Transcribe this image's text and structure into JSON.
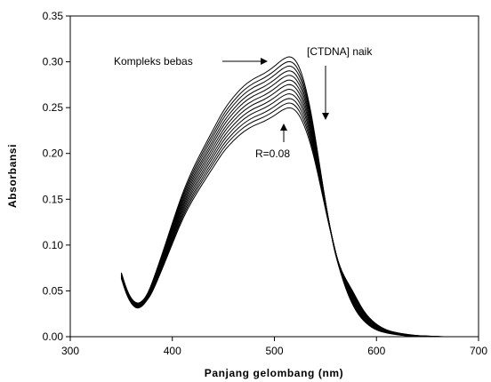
{
  "chart_data": {
    "type": "line",
    "xlabel": "Panjang gelombang (nm)",
    "ylabel": "Absorbansi",
    "xlim": [
      300,
      700
    ],
    "ylim": [
      0.0,
      0.35
    ],
    "x_ticks": [
      "300",
      "400",
      "500",
      "600",
      "700"
    ],
    "y_ticks": [
      "0.00",
      "0.05",
      "0.10",
      "0.15",
      "0.20",
      "0.25",
      "0.30",
      "0.35"
    ],
    "grid": false,
    "base_curve": {
      "x": [
        350,
        355,
        360,
        365,
        370,
        375,
        380,
        390,
        400,
        410,
        420,
        430,
        440,
        450,
        460,
        470,
        480,
        490,
        500,
        505,
        510,
        515,
        520,
        525,
        530,
        535,
        540,
        545,
        550,
        555,
        560,
        570,
        580,
        590,
        600,
        610,
        620,
        630,
        640,
        650
      ],
      "y": [
        0.07,
        0.052,
        0.041,
        0.036,
        0.038,
        0.045,
        0.058,
        0.09,
        0.124,
        0.157,
        0.183,
        0.205,
        0.226,
        0.247,
        0.262,
        0.274,
        0.282,
        0.287,
        0.295,
        0.3,
        0.304,
        0.306,
        0.303,
        0.293,
        0.275,
        0.25,
        0.218,
        0.182,
        0.147,
        0.115,
        0.088,
        0.051,
        0.027,
        0.014,
        0.007,
        0.004,
        0.002,
        0.001,
        0.0005,
        0.0
      ]
    },
    "series": [
      {
        "name": "Kompleks bebas",
        "scale": 1.0
      },
      {
        "scale": 0.983
      },
      {
        "scale": 0.967
      },
      {
        "scale": 0.95
      },
      {
        "scale": 0.934
      },
      {
        "scale": 0.917
      },
      {
        "scale": 0.901
      },
      {
        "scale": 0.884
      },
      {
        "scale": 0.868
      },
      {
        "scale": 0.851
      },
      {
        "scale": 0.835
      },
      {
        "name": "R=0.08",
        "scale": 0.818
      }
    ],
    "annotations": {
      "free_complex": "Kompleks bebas",
      "ctdna": "[CTDNA] naik",
      "ratio": "R=0.08"
    }
  }
}
